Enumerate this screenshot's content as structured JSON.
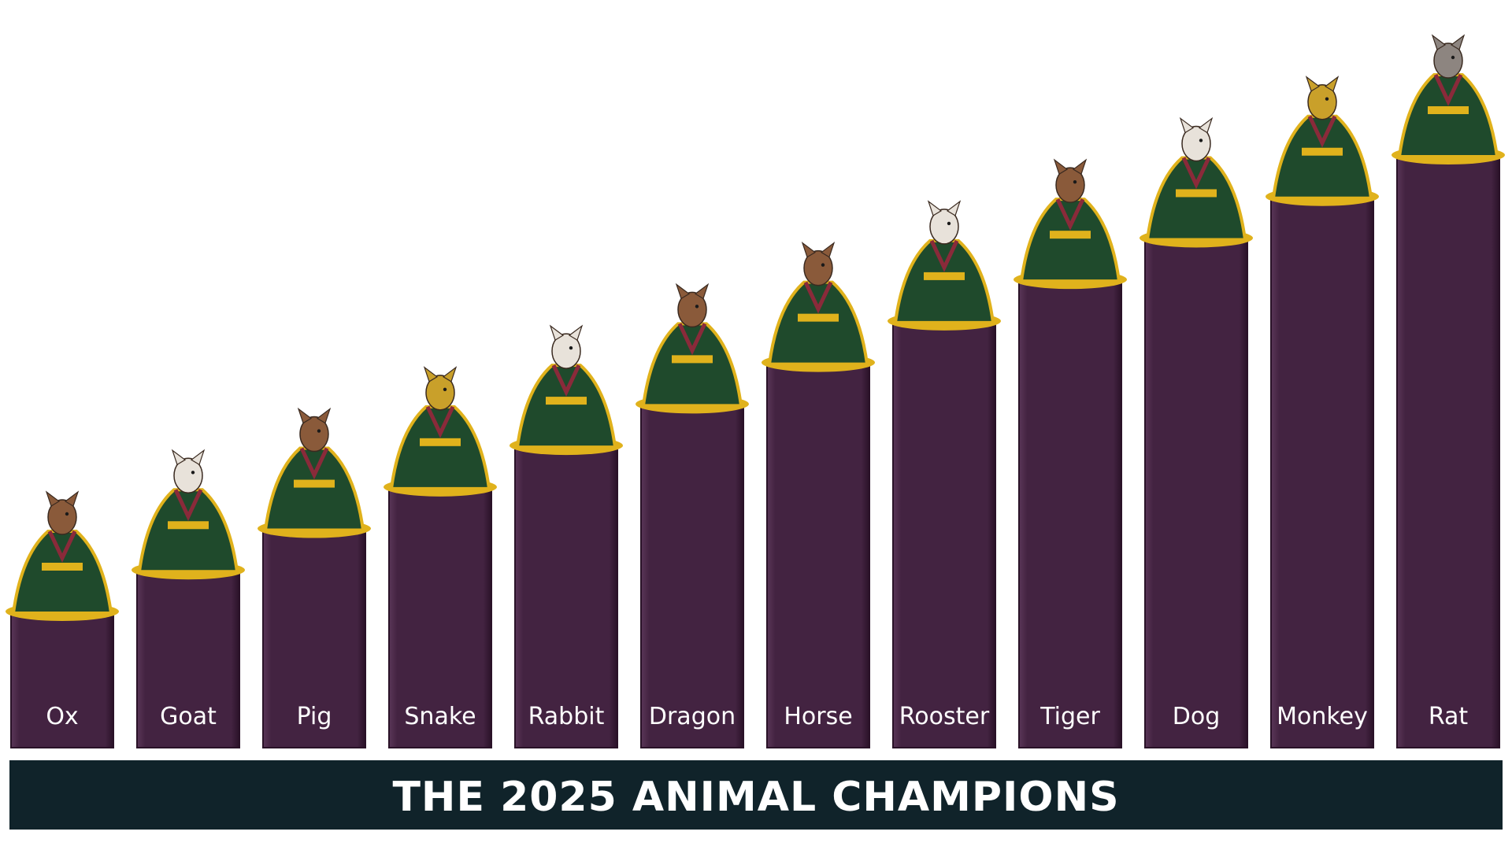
{
  "title": "THE 2025 ANIMAL CHAMPIONS",
  "colors": {
    "bar": "#432341",
    "bar_edge": "#2a1228",
    "bar_highlight": "#5a3657",
    "banner": "#10232a",
    "robe_green": "#1f4a2c",
    "robe_gold": "#e0b21c",
    "robe_red": "#8a2a3a",
    "fur_brown": "#8a5a3a",
    "fur_white": "#e8e2da"
  },
  "chart_data": {
    "type": "bar",
    "title": "THE 2025 ANIMAL CHAMPIONS",
    "categories": [
      "Ox",
      "Goat",
      "Pig",
      "Snake",
      "Rabbit",
      "Dragon",
      "Horse",
      "Rooster",
      "Tiger",
      "Dog",
      "Monkey",
      "Rat"
    ],
    "values": [
      1,
      2,
      3,
      4,
      5,
      6,
      7,
      8,
      9,
      10,
      11,
      12
    ],
    "ylim": [
      0,
      12
    ],
    "xlabel": "",
    "ylabel": "",
    "grid": false,
    "legend": "none",
    "icons": [
      "ox-icon",
      "goat-icon",
      "pig-icon",
      "snake-icon",
      "rabbit-icon",
      "dragon-icon",
      "horse-icon",
      "rooster-icon",
      "tiger-icon",
      "dog-icon",
      "monkey-icon",
      "rat-icon"
    ]
  }
}
